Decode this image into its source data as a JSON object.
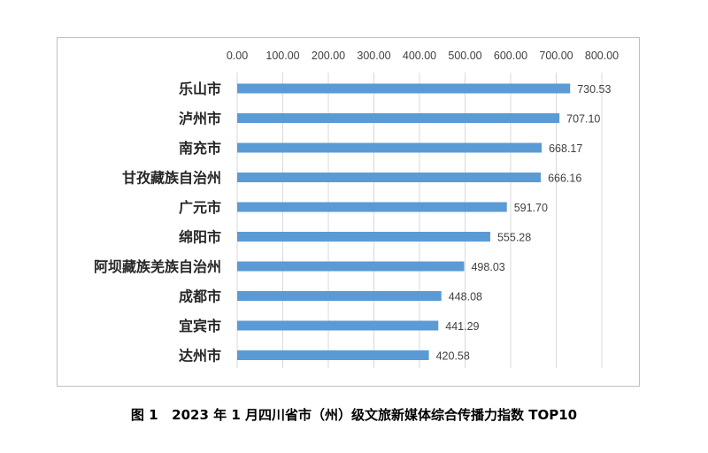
{
  "caption": "图 1   2023 年 1 月四川省市（州）级文旅新媒体综合传播力指数 TOP10",
  "chart_data": {
    "type": "bar",
    "orientation": "horizontal",
    "categories": [
      "乐山市",
      "泸州市",
      "南充市",
      "甘孜藏族自治州",
      "广元市",
      "绵阳市",
      "阿坝藏族羌族自治州",
      "成都市",
      "宜宾市",
      "达州市"
    ],
    "values": [
      730.53,
      707.1,
      668.17,
      666.16,
      591.7,
      555.28,
      498.03,
      448.08,
      441.29,
      420.58
    ],
    "value_labels": [
      "730.53",
      "707.10",
      "668.17",
      "666.16",
      "591.70",
      "555.28",
      "498.03",
      "448.08",
      "441.29",
      "420.58"
    ],
    "x_ticks": [
      "0.00",
      "100.00",
      "200.00",
      "300.00",
      "400.00",
      "500.00",
      "600.00",
      "700.00",
      "800.00"
    ],
    "xlim": [
      0,
      800
    ],
    "axis_position": "top",
    "grid": true,
    "legend": "none",
    "bar_color": "#5b9bd5",
    "grid_color": "#d9d9d9",
    "title": "",
    "xlabel": "",
    "ylabel": ""
  }
}
